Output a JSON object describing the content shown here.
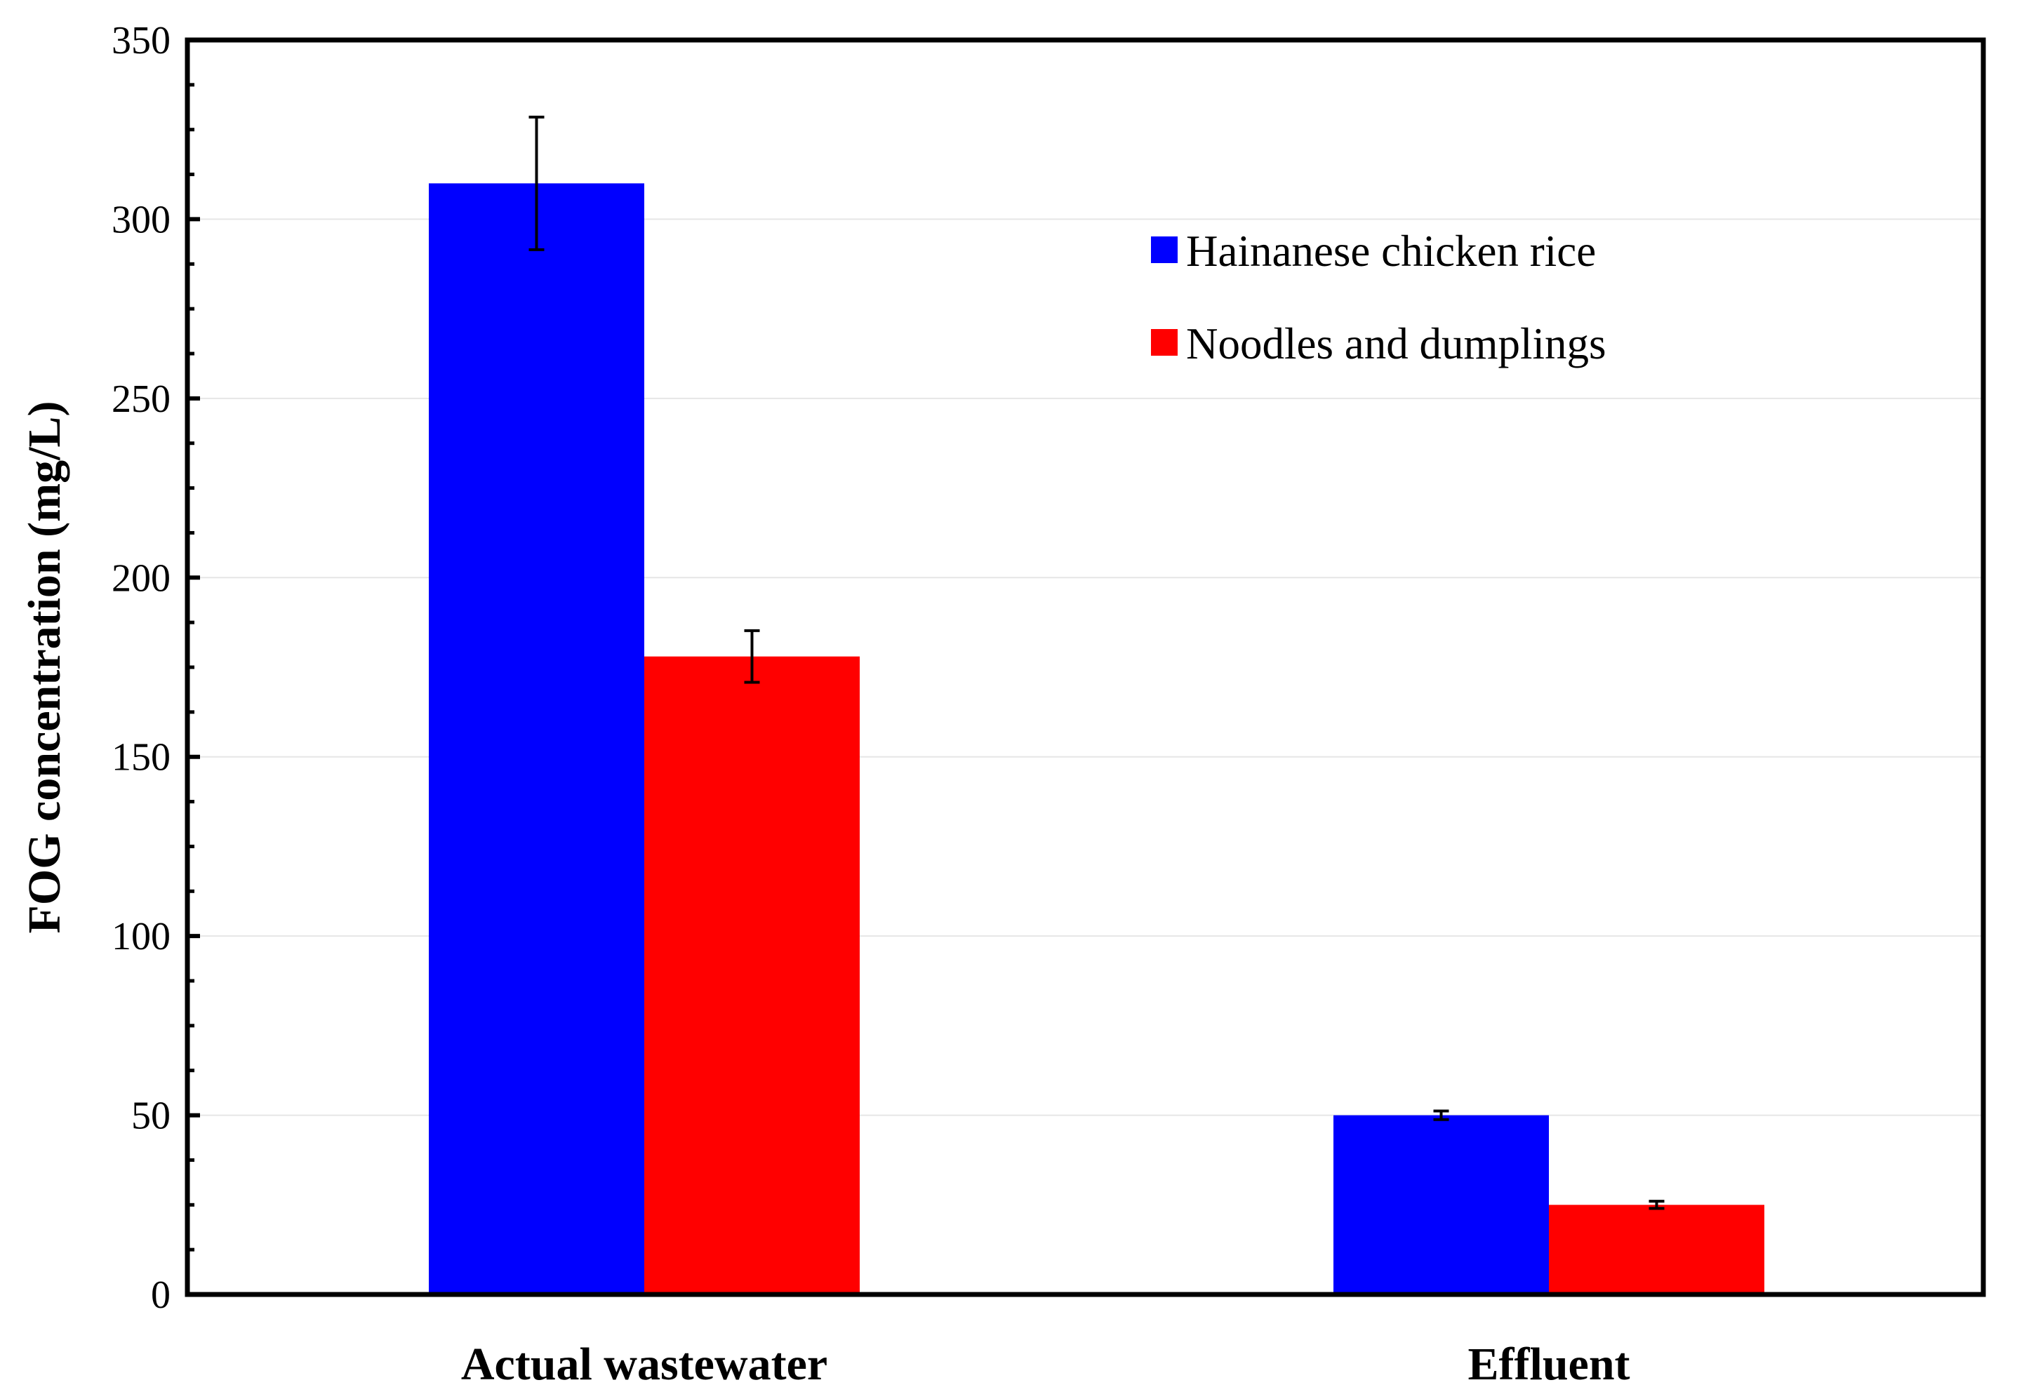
{
  "chart_data": {
    "type": "bar",
    "title": "",
    "xlabel": "",
    "ylabel": "FOG concentration (mg/L)",
    "ylim": [
      0,
      350
    ],
    "yticks": [
      0,
      50,
      100,
      150,
      200,
      250,
      300,
      350
    ],
    "ytick_labels": [
      "0",
      "50",
      "100",
      "150",
      "200",
      "250",
      "300",
      "350"
    ],
    "categories": [
      "Actual wastewater",
      "Effluent"
    ],
    "series": [
      {
        "name": "Hainanese chicken rice",
        "color": "#0000ff",
        "values": [
          310,
          50
        ],
        "errors": [
          18.5,
          1.2
        ]
      },
      {
        "name": "Noodles and dumplings",
        "color": "#ff0000",
        "values": [
          178,
          25
        ],
        "errors": [
          7.2,
          1.0
        ]
      }
    ],
    "grid": "horizontal",
    "legend_position": "top-right"
  }
}
